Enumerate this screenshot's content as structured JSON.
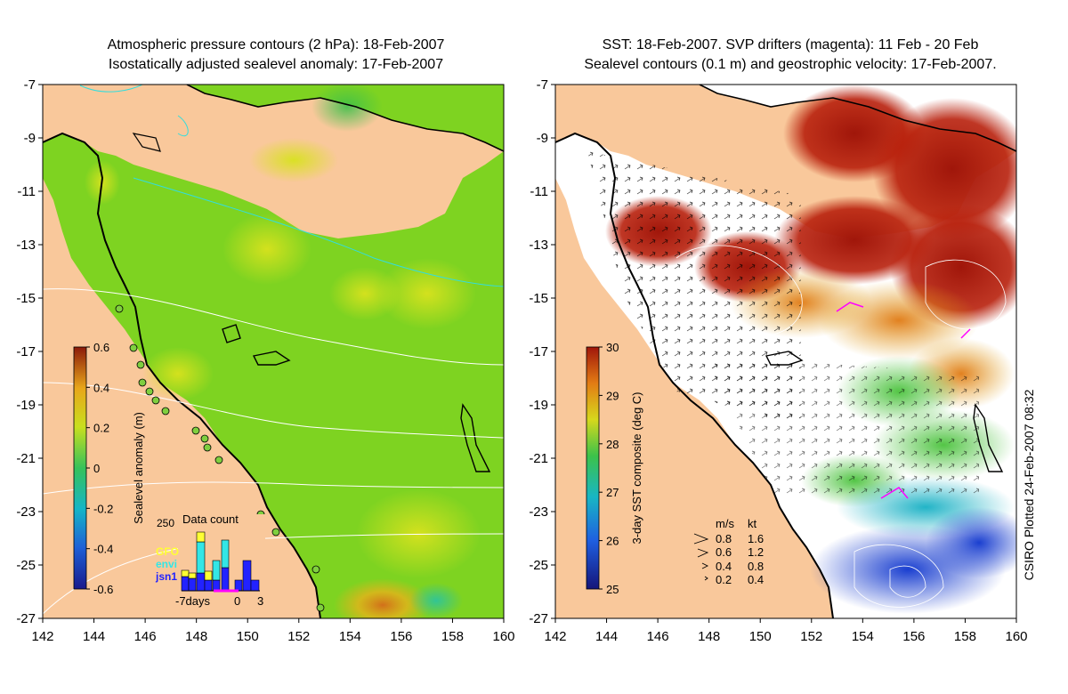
{
  "left_panel": {
    "title_line1": "Atmospheric pressure contours (2 hPa): 18-Feb-2007",
    "title_line2": "Isostatically adjusted sealevel anomaly: 17-Feb-2007",
    "colorbar": {
      "label": "Sealevel anomaly (m)",
      "ticks": [
        "0.6",
        "0.4",
        "0.2",
        "0",
        "-0.2",
        "-0.4",
        "-0.6"
      ]
    },
    "inset": {
      "title": "Data count",
      "ymax_label": "250",
      "legend": [
        {
          "name": "GFO",
          "color": "#ffff33"
        },
        {
          "name": "envi",
          "color": "#33e6e6"
        },
        {
          "name": "jsn1",
          "color": "#2222ff"
        }
      ],
      "x_labels": [
        "-7days",
        "0",
        "3"
      ]
    }
  },
  "right_panel": {
    "title_line1": "SST: 18-Feb-2007. SVP drifters (magenta): 11 Feb - 20 Feb",
    "title_line2": "Sealevel contours (0.1 m) and geostrophic velocity: 17-Feb-2007.",
    "colorbar": {
      "label": "3-day SST composite (deg C)",
      "ticks": [
        "30",
        "29",
        "28",
        "27",
        "26",
        "25"
      ]
    },
    "velocity_legend": {
      "header_ms": "m/s",
      "header_kt": "kt",
      "rows": [
        {
          "ms": "0.8",
          "kt": "1.6"
        },
        {
          "ms": "0.6",
          "kt": "1.2"
        },
        {
          "ms": "0.4",
          "kt": "0.8"
        },
        {
          "ms": "0.2",
          "kt": "0.4"
        }
      ]
    },
    "credit": "CSIRO Plotted 24-Feb-2007 08:32"
  },
  "axes": {
    "y_ticks": [
      "-7",
      "-9",
      "-11",
      "-13",
      "-15",
      "-17",
      "-19",
      "-21",
      "-23",
      "-25",
      "-27"
    ],
    "x_ticks": [
      "142",
      "144",
      "146",
      "148",
      "150",
      "152",
      "154",
      "156",
      "158",
      "160"
    ],
    "lon_range": [
      142,
      160
    ],
    "lat_range": [
      -27,
      -7
    ]
  },
  "colors": {
    "land": "#f9c89b",
    "ocean_anomaly_base": "#7ed321",
    "coastline": "#000000"
  }
}
